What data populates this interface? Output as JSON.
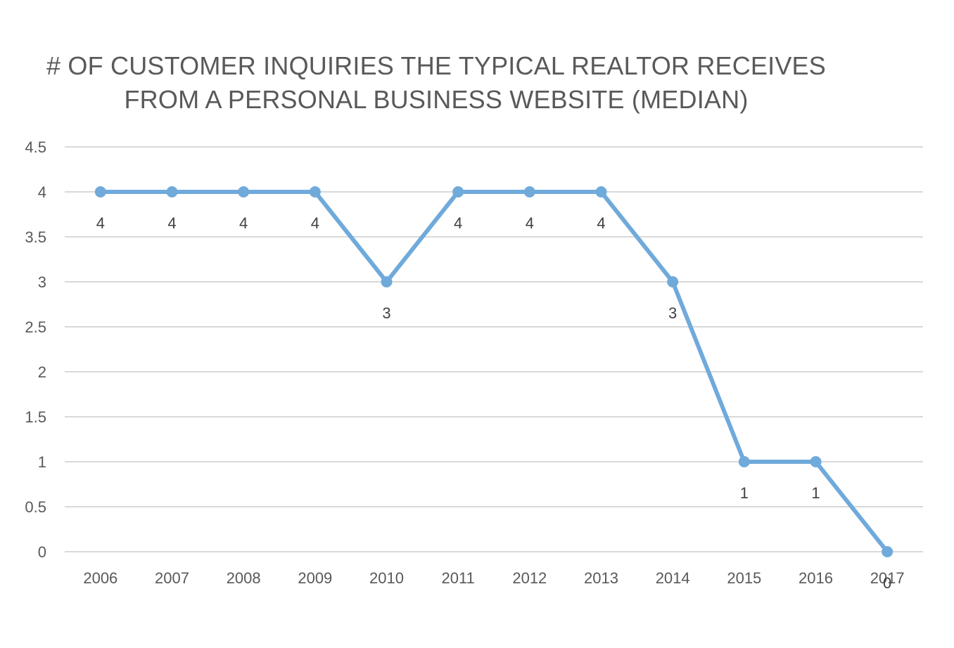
{
  "chart_data": {
    "type": "line",
    "title": "# OF CUSTOMER INQUIRIES THE TYPICAL REALTOR RECEIVES",
    "subtitle": "FROM A PERSONAL BUSINESS WEBSITE (MEDIAN)",
    "xlabel": "",
    "ylabel": "",
    "categories": [
      "2006",
      "2007",
      "2008",
      "2009",
      "2010",
      "2011",
      "2012",
      "2013",
      "2014",
      "2015",
      "2016",
      "2017"
    ],
    "series": [
      {
        "values": [
          4,
          4,
          4,
          4,
          3,
          4,
          4,
          4,
          3,
          1,
          1,
          0
        ],
        "data_labels": [
          "4",
          "4",
          "4",
          "4",
          "3",
          "4",
          "4",
          "4",
          "3",
          "1",
          "1",
          "0"
        ]
      }
    ],
    "ylim": [
      0,
      4.5
    ],
    "yticks": [
      "0",
      "0.5",
      "1",
      "1.5",
      "2",
      "2.5",
      "3",
      "3.5",
      "4",
      "4.5"
    ],
    "grid": true,
    "legend": "none",
    "colors": {
      "line": "#70AADB",
      "grid": "#D9D9D9",
      "tick_text": "#595959",
      "label_text": "#404040",
      "title": "#595959"
    }
  }
}
